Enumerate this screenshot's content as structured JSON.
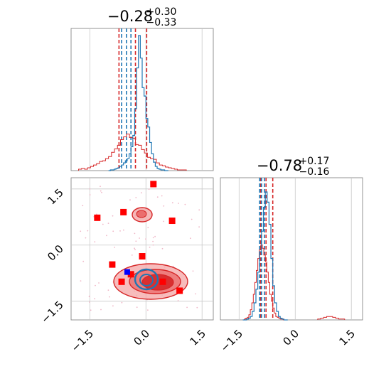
{
  "chart_data": {
    "type": "corner",
    "colors": {
      "sample_a": "#1f77b4",
      "sample_b": "#d62728",
      "truth": "#0000ff",
      "markers": "#ff0000"
    },
    "grid": true,
    "axis_range": [
      -2.0,
      1.8
    ],
    "ticks": [
      -1.5,
      0.0,
      1.5
    ],
    "tick_labels": [
      "−1.5",
      "0.0",
      "1.5"
    ],
    "param1": {
      "title": {
        "median": "−0.28",
        "upper": "+0.30",
        "lower": "−0.33"
      },
      "quantiles_blue": [
        -0.65,
        -0.52,
        -0.4
      ],
      "quantiles_red": [
        -0.72,
        -0.28,
        0.02
      ],
      "hist_blue": {
        "x0": -1.0,
        "dx": 0.05,
        "values": [
          0,
          1,
          1,
          2,
          3,
          4,
          6,
          8,
          11,
          14,
          17,
          24,
          34,
          50,
          88,
          146,
          192,
          160,
          118,
          106,
          74,
          62,
          40,
          24,
          12,
          6,
          3,
          2,
          1,
          1,
          0,
          0
        ]
      },
      "hist_red": {
        "x0": -1.8,
        "dx": 0.08,
        "values": [
          2,
          3,
          2,
          4,
          6,
          8,
          10,
          13,
          14,
          17,
          20,
          26,
          31,
          36,
          44,
          48,
          52,
          47,
          46,
          37,
          36,
          30,
          25,
          19,
          17,
          16,
          11,
          8,
          7,
          5,
          4,
          3,
          2,
          1,
          1,
          1
        ]
      }
    },
    "param2": {
      "title": {
        "median": "−0.78",
        "upper": "+0.17",
        "lower": "−0.16"
      },
      "quantiles_blue": [
        -0.95,
        -0.9,
        -0.82
      ],
      "quantiles_red": [
        -0.92,
        -0.78,
        -0.6
      ],
      "hist_blue": {
        "x0": -1.4,
        "dx": 0.05,
        "values": [
          0,
          0,
          1,
          2,
          4,
          10,
          20,
          36,
          56,
          80,
          104,
          132,
          150,
          138,
          112,
          72,
          40,
          20,
          10,
          4,
          2,
          1,
          0,
          0
        ]
      },
      "hist_red": {
        "x0": -1.4,
        "dx": 0.04,
        "values": [
          0,
          1,
          2,
          3,
          6,
          12,
          20,
          30,
          44,
          58,
          72,
          82,
          88,
          84,
          76,
          68,
          56,
          44,
          30,
          22,
          14,
          8,
          4,
          3,
          2,
          1,
          1,
          0,
          0
        ]
      },
      "hist_red_tail": {
        "x0": 0.6,
        "dx": 0.08,
        "values": [
          1,
          2,
          3,
          4,
          4,
          3,
          2,
          1,
          1
        ]
      }
    },
    "marker_points": [
      [
        0.2,
        1.63
      ],
      [
        -0.6,
        0.88
      ],
      [
        -1.3,
        0.73
      ],
      [
        0.7,
        0.65
      ],
      [
        -0.1,
        -0.3
      ],
      [
        -0.9,
        -0.52
      ],
      [
        -0.4,
        -0.78
      ],
      [
        -0.65,
        -0.98
      ],
      [
        0.45,
        -0.98
      ],
      [
        0.9,
        -1.22
      ]
    ],
    "truth_point": [
      -0.5,
      -0.72
    ]
  }
}
